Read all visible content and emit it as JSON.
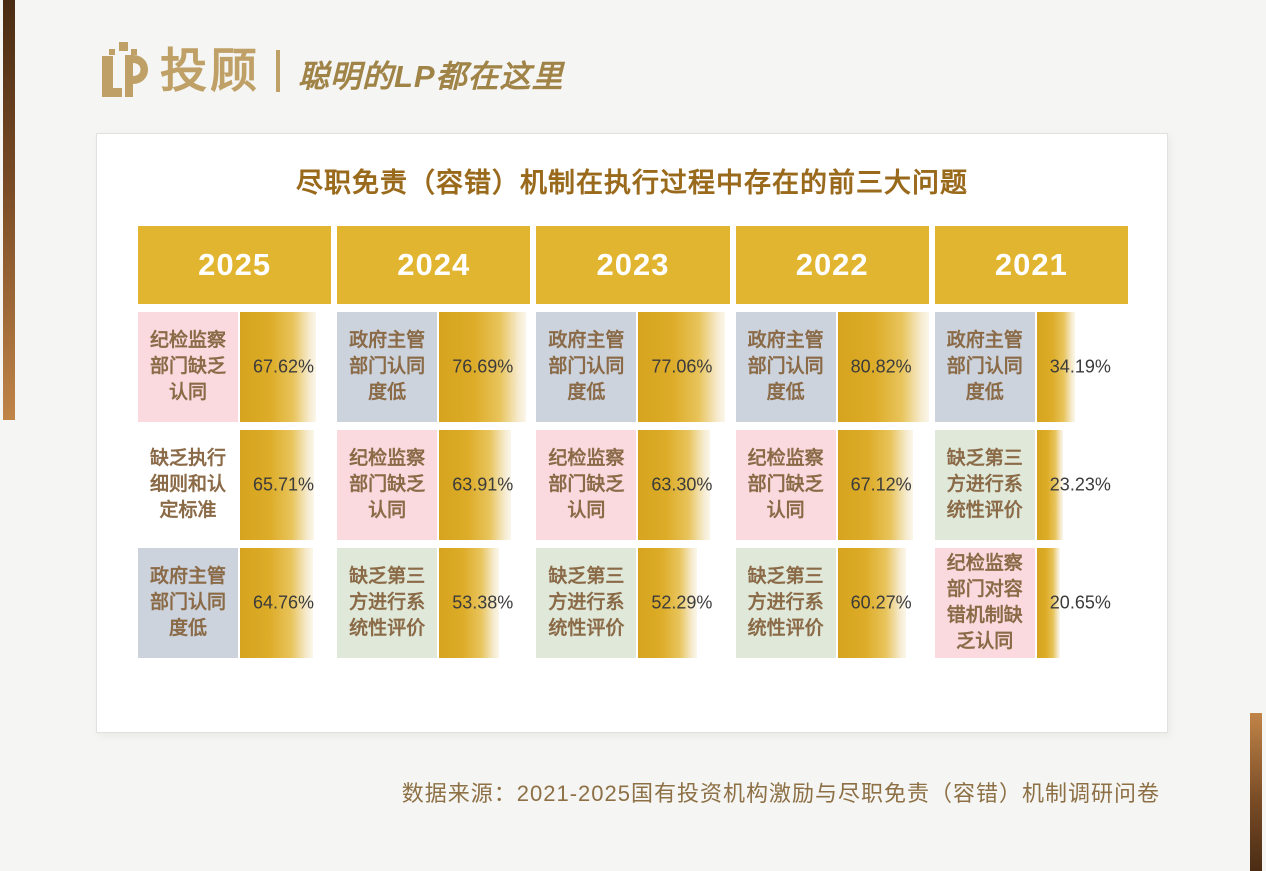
{
  "brand": {
    "logo_text": "投顾",
    "tagline": "聪明的LP都在这里"
  },
  "chart_data": {
    "type": "bar",
    "title": "尽职免责（容错）机制在执行过程中存在的前三大问题",
    "unit": "%",
    "orientation": "horizontal",
    "max_value": 80.82,
    "columns": [
      {
        "year": "2025",
        "items": [
          {
            "label": "纪检监察部门缺乏认同",
            "value": 67.62,
            "value_label": "67.62%",
            "tone": "pink"
          },
          {
            "label": "缺乏执行细则和认定标准",
            "value": 65.71,
            "value_label": "65.71%",
            "tone": "white"
          },
          {
            "label": "政府主管部门认同度低",
            "value": 64.76,
            "value_label": "64.76%",
            "tone": "blue"
          }
        ]
      },
      {
        "year": "2024",
        "items": [
          {
            "label": "政府主管部门认同度低",
            "value": 76.69,
            "value_label": "76.69%",
            "tone": "blue"
          },
          {
            "label": "纪检监察部门缺乏认同",
            "value": 63.91,
            "value_label": "63.91%",
            "tone": "pink"
          },
          {
            "label": "缺乏第三方进行系统性评价",
            "value": 53.38,
            "value_label": "53.38%",
            "tone": "green"
          }
        ]
      },
      {
        "year": "2023",
        "items": [
          {
            "label": "政府主管部门认同度低",
            "value": 77.06,
            "value_label": "77.06%",
            "tone": "blue"
          },
          {
            "label": "纪检监察部门缺乏认同",
            "value": 63.3,
            "value_label": "63.30%",
            "tone": "pink"
          },
          {
            "label": "缺乏第三方进行系统性评价",
            "value": 52.29,
            "value_label": "52.29%",
            "tone": "green"
          }
        ]
      },
      {
        "year": "2022",
        "items": [
          {
            "label": "政府主管部门认同度低",
            "value": 80.82,
            "value_label": "80.82%",
            "tone": "blue"
          },
          {
            "label": "纪检监察部门缺乏认同",
            "value": 67.12,
            "value_label": "67.12%",
            "tone": "pink"
          },
          {
            "label": "缺乏第三方进行系统性评价",
            "value": 60.27,
            "value_label": "60.27%",
            "tone": "green"
          }
        ]
      },
      {
        "year": "2021",
        "items": [
          {
            "label": "政府主管部门认同度低",
            "value": 34.19,
            "value_label": "34.19%",
            "tone": "blue"
          },
          {
            "label": "缺乏第三方进行系统性评价",
            "value": 23.23,
            "value_label": "23.23%",
            "tone": "green"
          },
          {
            "label": "纪检监察部门对容错机制缺乏认同",
            "value": 20.65,
            "value_label": "20.65%",
            "tone": "pink"
          }
        ]
      }
    ],
    "source": "数据来源：2021-2025国有投资机构激励与尽职免责（容错）机制调研问卷"
  },
  "colors": {
    "header_gold": "#e2b531",
    "bar_gradient_start": "#d6a41e",
    "bar_gradient_end": "#fbf6e9",
    "tone_pink": "#fadade",
    "tone_blue": "#ccd3dd",
    "tone_green": "#dfe8d9",
    "tone_white": "#ffffff",
    "label_text": "#8a6a47",
    "title_text": "#9a6a1c",
    "value_text": "#3b3b3b",
    "brand_gold": "#bfa066",
    "tagline_gold": "#a08347",
    "source_text": "#8d7045",
    "edge_dark": "#4a2c13",
    "edge_light": "#c08448"
  }
}
